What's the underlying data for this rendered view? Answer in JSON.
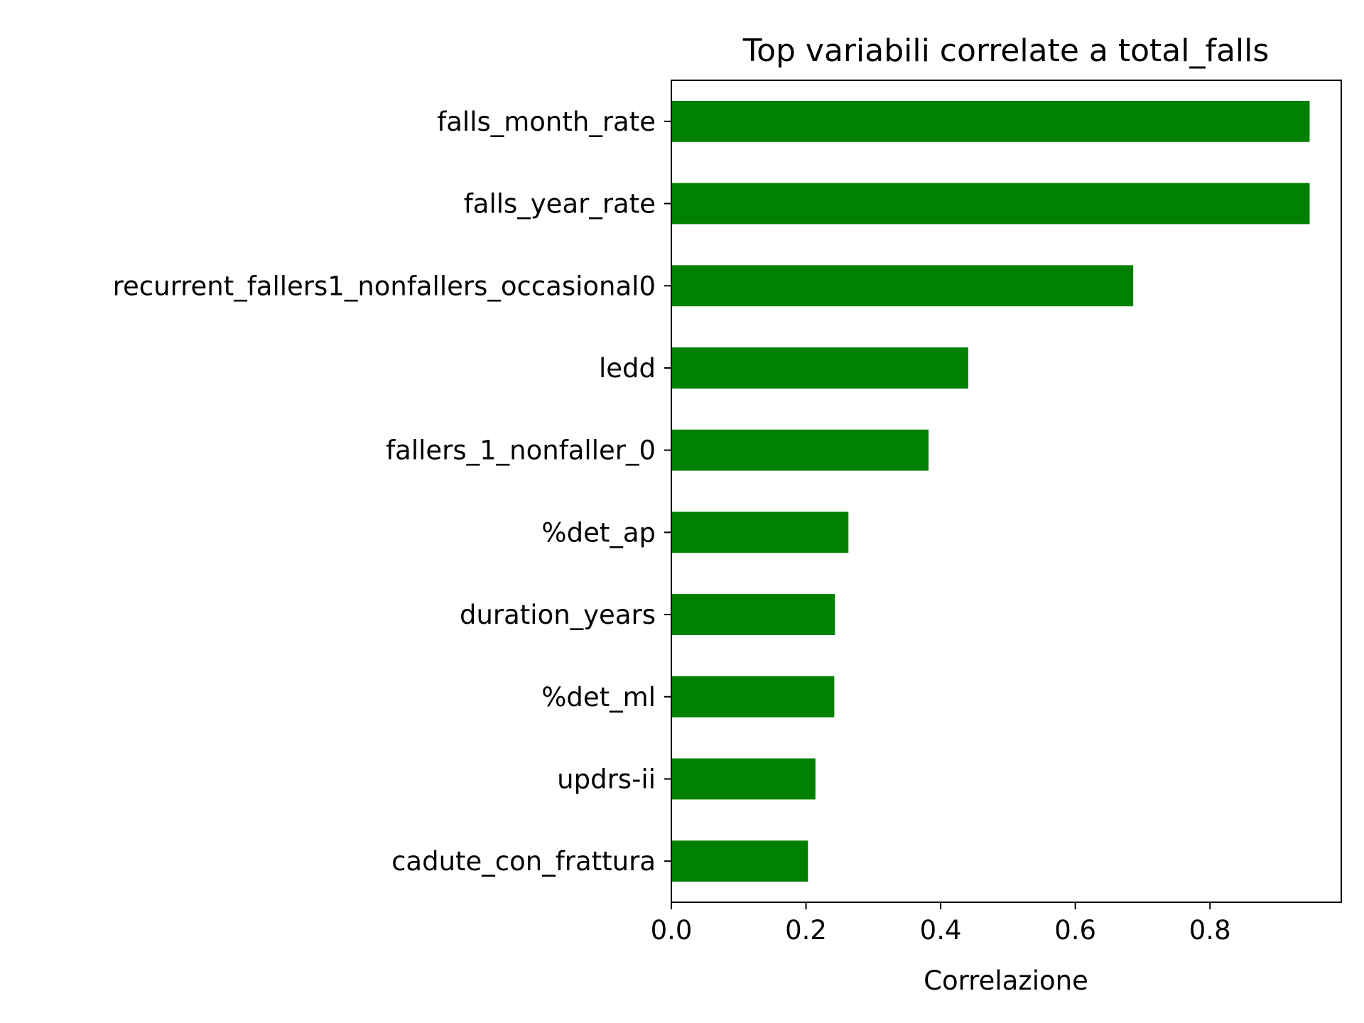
{
  "chart_data": {
    "type": "bar",
    "orientation": "horizontal",
    "title": "Top variabili correlate a total_falls",
    "xlabel": "Correlazione",
    "ylabel": "",
    "xlim": [
      0.0,
      0.995
    ],
    "xticks": [
      0.0,
      0.2,
      0.4,
      0.6,
      0.8
    ],
    "xtick_labels": [
      "0.0",
      "0.2",
      "0.4",
      "0.6",
      "0.8"
    ],
    "bar_color": "#008000",
    "categories": [
      "falls_month_rate",
      "falls_year_rate",
      "recurrent_fallers1_nonfallers_occasional0",
      "ledd",
      "fallers_1_nonfaller_0",
      "%det_ap",
      "duration_years",
      "%det_ml",
      "updrs-ii",
      "cadute_con_frattura"
    ],
    "values": [
      0.948,
      0.948,
      0.686,
      0.441,
      0.382,
      0.263,
      0.243,
      0.242,
      0.214,
      0.203
    ]
  }
}
